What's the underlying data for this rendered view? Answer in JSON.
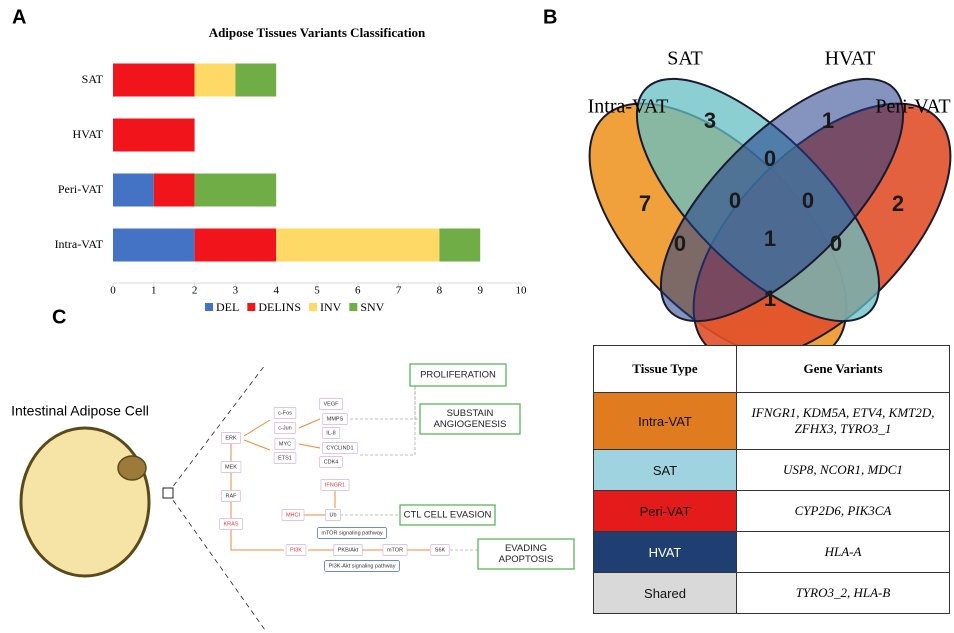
{
  "panels": [
    "A",
    "B",
    "C"
  ],
  "chart_data": {
    "type": "bar",
    "orientation": "horizontal",
    "stacked": true,
    "title": "Adipose Tissues Variants Classification",
    "categories": [
      "SAT",
      "HVAT",
      "Peri-VAT",
      "Intra-VAT"
    ],
    "series": [
      {
        "name": "DEL",
        "color": "#4472c4",
        "values": [
          0,
          0,
          1,
          2
        ]
      },
      {
        "name": "DELINS",
        "color": "#f2141b",
        "values": [
          2,
          2,
          1,
          2
        ]
      },
      {
        "name": "INV",
        "color": "#ffd966",
        "values": [
          1,
          0,
          0,
          4
        ]
      },
      {
        "name": "SNV",
        "color": "#70ad47",
        "values": [
          1,
          0,
          2,
          1
        ]
      }
    ],
    "xlim": [
      0,
      10
    ],
    "xticks": [
      0,
      1,
      2,
      3,
      4,
      5,
      6,
      7,
      8,
      9,
      10
    ],
    "legend": "bottom"
  },
  "venn": {
    "sets": [
      "SAT",
      "HVAT",
      "Intra-VAT",
      "Peri-VAT"
    ],
    "regions": [
      7,
      3,
      1,
      2,
      0,
      0,
      0,
      0,
      1,
      0,
      1
    ]
  },
  "table": {
    "header": [
      "Tissue Type",
      "Gene Variants"
    ],
    "rows": [
      [
        "Intra-VAT",
        "IFNGR1, KDM5A, ETV4, KMT2D, ZFHX3, TYRO3_1"
      ],
      [
        "SAT",
        "USP8, NCOR1, MDC1"
      ],
      [
        "Peri-VAT",
        "CYP2D6, PIK3CA"
      ],
      [
        "HVAT",
        "HLA-A"
      ],
      [
        "Shared",
        "TYRO3_2, HLA-B"
      ]
    ],
    "row_colors": [
      "#e07b1f",
      "#9fd3df",
      "#e31b1b",
      "#1f3f73",
      "#d9d9d9"
    ]
  },
  "pathway": {
    "cell_label": "Intestinal Adipose Cell",
    "nodes": [
      {
        "label": "ERK"
      },
      {
        "label": "MEK"
      },
      {
        "label": "RAF"
      },
      {
        "label": "KRAS",
        "color": "#e53935"
      },
      {
        "label": "c-Fos"
      },
      {
        "label": "c-Jun"
      },
      {
        "label": "MYC"
      },
      {
        "label": "ETS1"
      },
      {
        "label": "VEGF"
      },
      {
        "label": "MMPS"
      },
      {
        "label": "IL-8"
      },
      {
        "label": "CYCLIND1"
      },
      {
        "label": "CDK4"
      },
      {
        "label": "IFNGR1",
        "color": "#e53935"
      },
      {
        "label": "MHCI",
        "color": "#e53935"
      },
      {
        "label": "Ub"
      },
      {
        "label": "PI3K",
        "color": "#e53935"
      },
      {
        "label": "PKB/Akt"
      },
      {
        "label": "mTOR"
      },
      {
        "label": "S6K"
      },
      {
        "label": "mTOR signaling pathway"
      },
      {
        "label": "PI3K-Akt signaling pathway"
      }
    ],
    "outcomes": [
      [
        "PROLIFERATION"
      ],
      [
        "SUBSTAIN",
        "ANGIOGENESIS"
      ],
      [
        "CTL CELL EVASION"
      ],
      [
        "EVADING",
        "APOPTOSIS"
      ]
    ]
  }
}
